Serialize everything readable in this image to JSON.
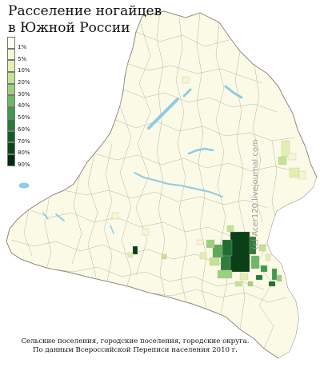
{
  "title": {
    "line1": "Расселение ногайцев",
    "line2": "в Южной России"
  },
  "legend": {
    "items": [
      {
        "label": "1%",
        "color": "#fdfdf0"
      },
      {
        "label": "5%",
        "color": "#f4f7d2"
      },
      {
        "label": "10%",
        "color": "#e2efb0"
      },
      {
        "label": "20%",
        "color": "#c4e294"
      },
      {
        "label": "30%",
        "color": "#9cd07e"
      },
      {
        "label": "40%",
        "color": "#6cb865"
      },
      {
        "label": "50%",
        "color": "#3f9a4c"
      },
      {
        "label": "60%",
        "color": "#237c37"
      },
      {
        "label": "70%",
        "color": "#0f5f27"
      },
      {
        "label": "80%",
        "color": "#09471c"
      },
      {
        "label": "90%",
        "color": "#032a0e"
      }
    ]
  },
  "caption": {
    "line1": "Сельские поселения, городские поселения, городские округа.",
    "line2": "По данным Всероссийской Переписи населения 2010 г."
  },
  "watermark": "(c) Acer120.livejournal.com",
  "colors": {
    "land": "#fbfae6",
    "border": "#b7b3a4",
    "water": "#8ecbe6",
    "outline": "#8c8a80"
  }
}
